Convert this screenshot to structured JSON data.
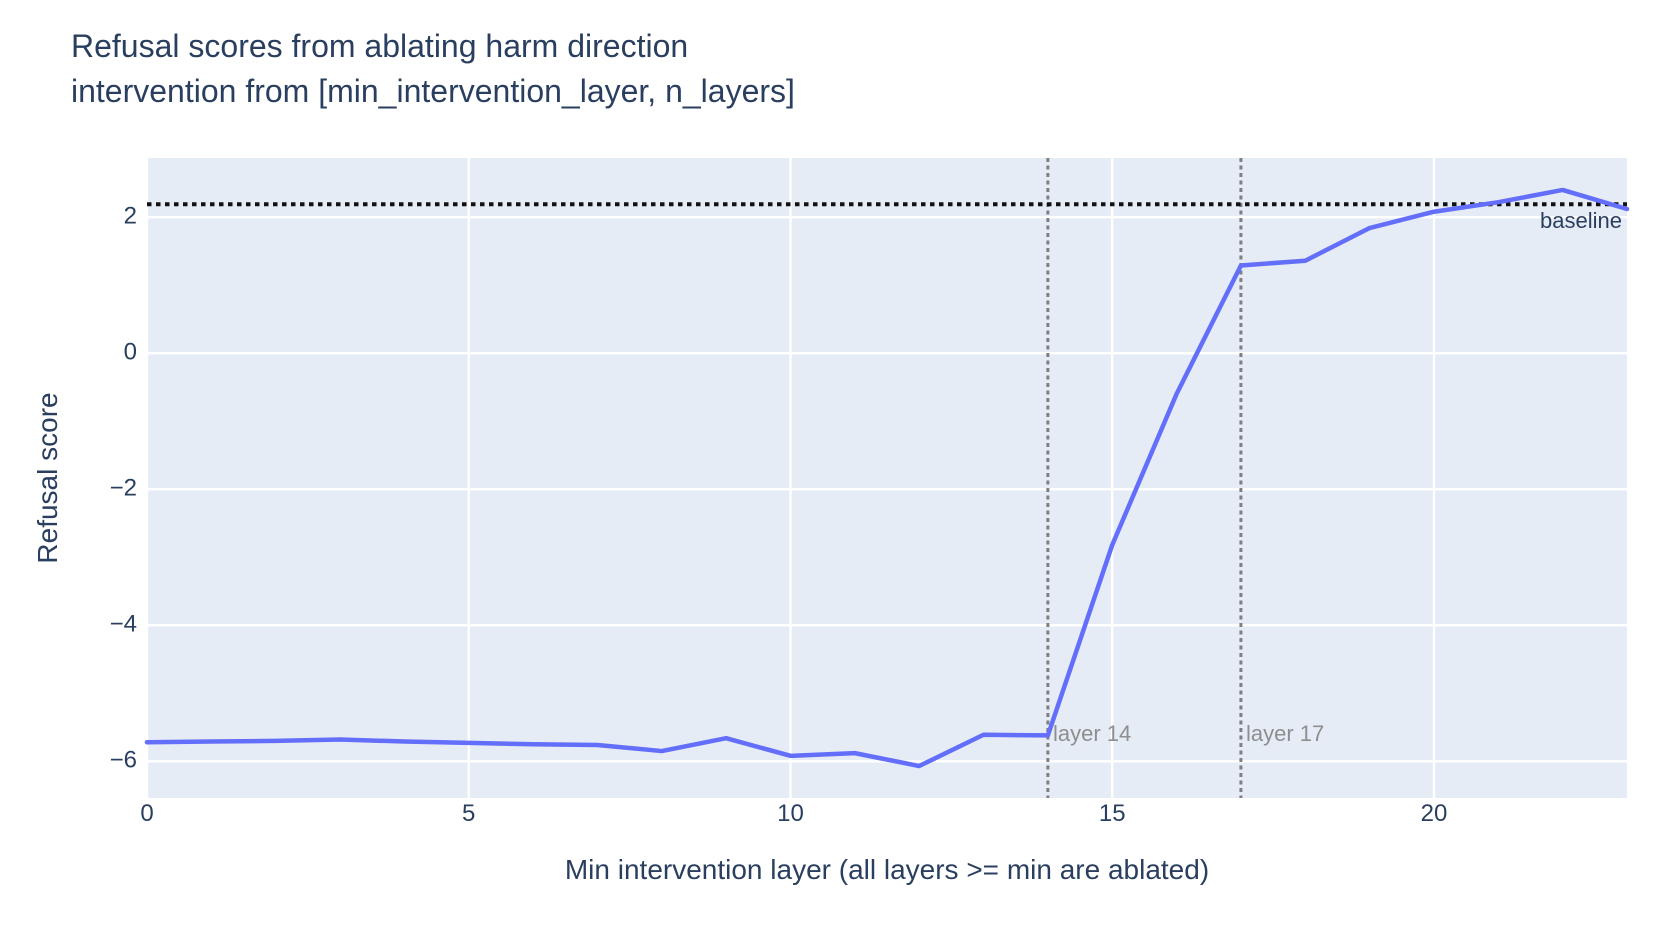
{
  "title": {
    "line1": "Refusal scores from ablating harm direction",
    "line2": "intervention from [min_intervention_layer, n_layers]"
  },
  "colors": {
    "text": "#2a3f5f",
    "plot_background": "#e5ecf6",
    "gridline": "#ffffff",
    "trace": "#636efa",
    "baseline_line": "#111111",
    "vline": "#7f7f7f",
    "vline_label": "#8e8e8e"
  },
  "chart_data": {
    "type": "line",
    "title": "Refusal scores from ablating harm direction intervention from [min_intervention_layer, n_layers]",
    "xlabel": "Min intervention layer (all layers >= min are ablated)",
    "ylabel": "Refusal score",
    "x": [
      0,
      1,
      2,
      3,
      4,
      5,
      6,
      7,
      8,
      9,
      10,
      11,
      12,
      13,
      14,
      15,
      16,
      17,
      18,
      19,
      20,
      21,
      22,
      23
    ],
    "y": [
      -5.72,
      -5.71,
      -5.7,
      -5.68,
      -5.71,
      -5.73,
      -5.75,
      -5.76,
      -5.85,
      -5.66,
      -5.92,
      -5.88,
      -6.07,
      -5.61,
      -5.62,
      -2.82,
      -0.6,
      1.29,
      1.36,
      1.84,
      2.08,
      2.22,
      2.4,
      2.12
    ],
    "xlim": [
      0,
      23
    ],
    "ylim": [
      -6.54,
      2.87
    ],
    "xticks": [
      0,
      5,
      10,
      15,
      20
    ],
    "yticks": [
      2,
      0,
      -2,
      -4,
      -6
    ],
    "grid": true,
    "legend": "none",
    "baseline": {
      "value": 2.19,
      "label": "baseline"
    },
    "vlines": [
      {
        "x": 14,
        "label": "layer 14"
      },
      {
        "x": 17,
        "label": "layer 17"
      }
    ]
  }
}
